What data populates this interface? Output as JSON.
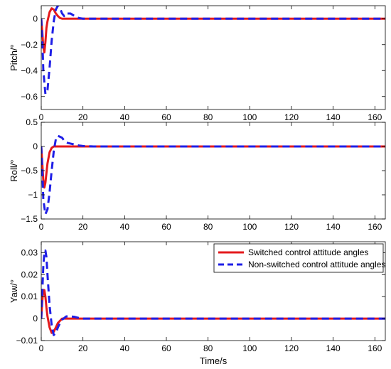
{
  "chart_data": [
    {
      "type": "line",
      "id": "pitch",
      "title": "",
      "xlabel": "",
      "ylabel": "Pitch/°",
      "xlim": [
        0,
        165
      ],
      "ylim": [
        -0.7,
        0.1
      ],
      "xticks": [
        0,
        20,
        40,
        60,
        80,
        100,
        120,
        140,
        160
      ],
      "yticks": [
        -0.6,
        -0.4,
        -0.2,
        0
      ],
      "ytick_labels": [
        "−0.6",
        "−0.4",
        "−0.2",
        "0"
      ],
      "grid": false,
      "series": [
        {
          "name": "Switched control attitude angles",
          "color": "#e41a1c",
          "style": "solid",
          "x": [
            0,
            0.5,
            1,
            1.5,
            2,
            2.5,
            3,
            4,
            5,
            6,
            7,
            8,
            9,
            10,
            12,
            15,
            20,
            165
          ],
          "y": [
            0,
            -0.1,
            -0.22,
            -0.26,
            -0.18,
            -0.07,
            -0.02,
            0.05,
            0.08,
            0.07,
            0.04,
            0.02,
            0.005,
            0,
            0,
            0,
            0,
            0
          ]
        },
        {
          "name": "Non-switched control attitude angles",
          "color": "#1f1fe6",
          "style": "dashed",
          "x": [
            0,
            0.5,
            1,
            2,
            3,
            4,
            5,
            6,
            7,
            8,
            9,
            10,
            11,
            12,
            14,
            16,
            18,
            20,
            25,
            30,
            165
          ],
          "y": [
            0,
            -0.15,
            -0.4,
            -0.58,
            -0.55,
            -0.38,
            -0.17,
            -0.02,
            0.07,
            0.1,
            0.08,
            0.04,
            0.02,
            0.04,
            0.04,
            0.02,
            0.005,
            0,
            0,
            0,
            0
          ]
        }
      ]
    },
    {
      "type": "line",
      "id": "roll",
      "title": "",
      "xlabel": "",
      "ylabel": "Roll/°",
      "xlim": [
        0,
        165
      ],
      "ylim": [
        -1.5,
        0.5
      ],
      "xticks": [
        0,
        20,
        40,
        60,
        80,
        100,
        120,
        140,
        160
      ],
      "yticks": [
        -1.5,
        -1,
        -0.5,
        0,
        0.5
      ],
      "ytick_labels": [
        "−1.5",
        "−1",
        "−0.5",
        "0",
        "0.5"
      ],
      "grid": false,
      "series": [
        {
          "name": "Switched control attitude angles",
          "color": "#e41a1c",
          "style": "solid",
          "x": [
            0,
            0.5,
            1,
            1.5,
            2,
            2.5,
            3,
            4,
            5,
            6,
            7,
            8,
            10,
            165
          ],
          "y": [
            0,
            -0.35,
            -0.7,
            -0.85,
            -0.75,
            -0.55,
            -0.35,
            -0.12,
            -0.03,
            0,
            0,
            0,
            0,
            0
          ]
        },
        {
          "name": "Non-switched control attitude angles",
          "color": "#1f1fe6",
          "style": "dashed",
          "x": [
            0,
            0.5,
            1,
            2,
            3,
            4,
            5,
            6,
            7,
            8,
            9,
            10,
            11,
            12,
            14,
            16,
            18,
            20,
            25,
            165
          ],
          "y": [
            0,
            -0.5,
            -1.1,
            -1.4,
            -1.3,
            -0.95,
            -0.5,
            -0.1,
            0.15,
            0.22,
            0.2,
            0.18,
            0.12,
            0.08,
            0.06,
            0.04,
            0.02,
            0.01,
            0,
            0
          ]
        }
      ]
    },
    {
      "type": "line",
      "id": "yaw",
      "title": "",
      "xlabel": "Time/s",
      "ylabel": "Yaw/°",
      "xlim": [
        0,
        165
      ],
      "ylim": [
        -0.01,
        0.035
      ],
      "xticks": [
        0,
        20,
        40,
        60,
        80,
        100,
        120,
        140,
        160
      ],
      "yticks": [
        -0.01,
        0,
        0.01,
        0.02,
        0.03
      ],
      "ytick_labels": [
        "−0.01",
        "0",
        "0.01",
        "0.02",
        "0.03"
      ],
      "grid": false,
      "legend": {
        "position": "top-right",
        "entries": [
          {
            "label": "Switched control attitude angles",
            "color": "#e41a1c",
            "style": "solid"
          },
          {
            "label": "Non-switched control attitude angles",
            "color": "#1f1fe6",
            "style": "dashed"
          }
        ]
      },
      "series": [
        {
          "name": "Switched control attitude angles",
          "color": "#e41a1c",
          "style": "solid",
          "x": [
            0,
            0.5,
            1,
            1.5,
            2,
            2.5,
            3,
            4,
            5,
            6,
            7,
            8,
            9,
            10,
            12,
            15,
            20,
            165
          ],
          "y": [
            0,
            0.008,
            0.013,
            0.013,
            0.01,
            0.005,
            0.001,
            -0.004,
            -0.0065,
            -0.006,
            -0.004,
            -0.002,
            -0.001,
            0,
            0,
            0,
            0,
            0
          ]
        },
        {
          "name": "Non-switched control attitude angles",
          "color": "#1f1fe6",
          "style": "dashed",
          "x": [
            0,
            0.5,
            1,
            1.5,
            2,
            2.5,
            3,
            4,
            5,
            6,
            7,
            8,
            9,
            10,
            12,
            14,
            16,
            18,
            20,
            25,
            165
          ],
          "y": [
            0,
            0.012,
            0.024,
            0.03,
            0.031,
            0.028,
            0.02,
            0.006,
            -0.003,
            -0.0075,
            -0.0065,
            -0.004,
            -0.002,
            -0.0005,
            0.001,
            0.001,
            0.0008,
            0.0003,
            0,
            0,
            0
          ]
        }
      ]
    }
  ]
}
